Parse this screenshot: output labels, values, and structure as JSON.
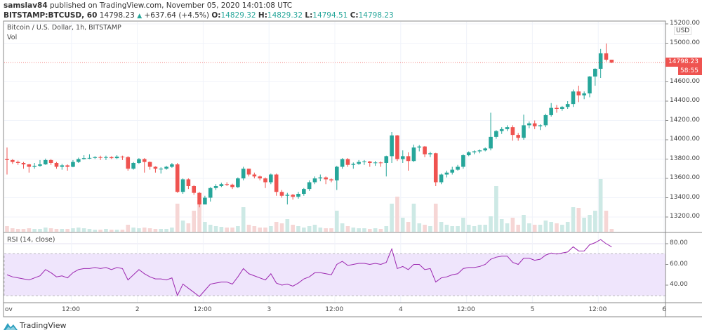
{
  "header": {
    "publisher": "samslav84",
    "published_text": "published on TradingView.com, November 05, 2020 14:01:08 UTC",
    "symbol": "BITSTAMP:BTCUSD, 60",
    "last": "14798.23",
    "change": "+637.64 (+4.5%)",
    "o_label": "O:",
    "o": "14829.32",
    "h_label": "H:",
    "h": "14829.32",
    "l_label": "L:",
    "l": "14794.51",
    "c_label": "C:",
    "c": "14798.23"
  },
  "legend": {
    "title": "Bitcoin / U.S. Dollar, 1h, BITSTAMP",
    "vol": "Vol",
    "rsi": "RSI (14, close)"
  },
  "price_axis": {
    "currency": "USD",
    "ticks": [
      "15200.00",
      "15000.00",
      "14600.00",
      "14400.00",
      "14200.00",
      "14000.00",
      "13800.00",
      "13600.00",
      "13400.00",
      "13200.00"
    ],
    "last_price": "14798.23",
    "countdown": "58:55"
  },
  "rsi_axis": {
    "ticks": [
      "80.00",
      "60.00",
      "40.00"
    ],
    "band": [
      30,
      70
    ]
  },
  "time_axis": {
    "ticks": [
      "ov",
      "12:00",
      "2",
      "12:00",
      "3",
      "12:00",
      "4",
      "12:00",
      "5",
      "12:00",
      "6"
    ]
  },
  "logo": "TradingView",
  "colors": {
    "up": "#26a69a",
    "down": "#ef5350",
    "rsi": "#9c27b0",
    "rsi_band": "#e9dcfb"
  },
  "chart_data": {
    "type": "candlestick",
    "interval": "1h",
    "ylim": [
      13100,
      15200
    ],
    "open0": 13800,
    "close": [
      13790,
      13770,
      13760,
      13745,
      13720,
      13730,
      13745,
      13790,
      13760,
      13720,
      13735,
      13720,
      13770,
      13800,
      13810,
      13812,
      13820,
      13815,
      13820,
      13810,
      13825,
      13820,
      13700,
      13760,
      13800,
      13770,
      13720,
      13700,
      13700,
      13720,
      13745,
      13460,
      13590,
      13520,
      13450,
      13330,
      13400,
      13500,
      13520,
      13540,
      13535,
      13510,
      13600,
      13700,
      13640,
      13620,
      13600,
      13560,
      13640,
      13460,
      13420,
      13430,
      13410,
      13440,
      13490,
      13560,
      13600,
      13610,
      13590,
      13580,
      13720,
      13800,
      13740,
      13750,
      13770,
      13775,
      13760,
      13765,
      13760,
      13830,
      14045,
      13800,
      13830,
      13780,
      13920,
      13930,
      13850,
      13860,
      13560,
      13640,
      13660,
      13690,
      13720,
      13840,
      13870,
      13880,
      13890,
      13910,
      14030,
      14090,
      14110,
      14130,
      14050,
      14020,
      14150,
      14170,
      14140,
      14150,
      14255,
      14330,
      14320,
      14340,
      14370,
      14500,
      14460,
      14480,
      14655,
      14735,
      14895,
      14829.32,
      14798.23
    ],
    "high": [
      13920,
      13800,
      13785,
      13770,
      13750,
      13760,
      13790,
      13805,
      13800,
      13770,
      13750,
      13745,
      13790,
      13815,
      13840,
      13850,
      13830,
      13835,
      13835,
      13830,
      13840,
      13835,
      13830,
      13770,
      13810,
      13810,
      13775,
      13725,
      13715,
      13730,
      13760,
      13760,
      13600,
      13600,
      13530,
      13460,
      13420,
      13510,
      13540,
      13555,
      13560,
      13545,
      13610,
      13720,
      13700,
      13660,
      13630,
      13610,
      13650,
      13650,
      13480,
      13450,
      13440,
      13460,
      13500,
      13580,
      13620,
      13640,
      13620,
      13600,
      13730,
      13810,
      13810,
      13765,
      13790,
      13790,
      13780,
      13780,
      13775,
      13835,
      14080,
      14050,
      13890,
      13870,
      13950,
      13945,
      13935,
      13875,
      13865,
      13650,
      13680,
      13720,
      13740,
      13850,
      13880,
      13890,
      13900,
      13920,
      14280,
      14100,
      14130,
      14150,
      14150,
      14070,
      14260,
      14190,
      14200,
      14160,
      14270,
      14380,
      14360,
      14350,
      14400,
      14520,
      14560,
      14500,
      14660,
      14740,
      14940,
      14997,
      14829.32
    ],
    "low": [
      13640,
      13750,
      13740,
      13700,
      13660,
      13700,
      13720,
      13740,
      13740,
      13700,
      13690,
      13680,
      13715,
      13760,
      13795,
      13800,
      13800,
      13790,
      13790,
      13800,
      13800,
      13790,
      13680,
      13690,
      13750,
      13660,
      13690,
      13660,
      13650,
      13690,
      13710,
      13450,
      13440,
      13490,
      13430,
      13300,
      13330,
      13360,
      13480,
      13510,
      13520,
      13490,
      13500,
      13580,
      13620,
      13600,
      13580,
      13500,
      13540,
      13420,
      13400,
      13330,
      13380,
      13390,
      13420,
      13470,
      13540,
      13570,
      13540,
      13560,
      13480,
      13700,
      13720,
      13700,
      13740,
      13740,
      13720,
      13730,
      13720,
      13620,
      13760,
      13780,
      13760,
      13680,
      13770,
      13880,
      13820,
      13820,
      13520,
      13540,
      13610,
      13640,
      13680,
      13700,
      13830,
      13850,
      13860,
      13880,
      13890,
      14010,
      14060,
      14090,
      13990,
      13990,
      14000,
      14120,
      14110,
      14100,
      14130,
      14240,
      14280,
      14300,
      14320,
      14340,
      14390,
      14420,
      14440,
      14560,
      14640,
      14810,
      14794.51
    ],
    "volume_relative": [
      8,
      5,
      4,
      4,
      5,
      4,
      4,
      6,
      5,
      4,
      4,
      4,
      5,
      6,
      5,
      4,
      3,
      3,
      4,
      3,
      3,
      3,
      10,
      6,
      5,
      6,
      5,
      4,
      4,
      4,
      6,
      40,
      16,
      12,
      30,
      45,
      14,
      10,
      8,
      7,
      6,
      6,
      8,
      35,
      10,
      8,
      6,
      6,
      8,
      14,
      12,
      18,
      10,
      8,
      6,
      8,
      10,
      6,
      5,
      5,
      30,
      12,
      8,
      6,
      5,
      5,
      4,
      5,
      4,
      8,
      40,
      50,
      20,
      14,
      40,
      12,
      10,
      8,
      40,
      14,
      10,
      8,
      8,
      20,
      10,
      8,
      10,
      10,
      22,
      65,
      18,
      12,
      20,
      10,
      24,
      12,
      10,
      10,
      16,
      14,
      12,
      10,
      14,
      35,
      34,
      20,
      24,
      30,
      75,
      30,
      4
    ],
    "rsi": [
      50,
      48,
      47,
      46,
      45,
      47,
      49,
      55,
      52,
      48,
      49,
      47,
      52,
      55,
      56,
      56,
      57,
      56,
      57,
      55,
      57,
      56,
      45,
      50,
      55,
      51,
      48,
      46,
      46,
      45,
      47,
      30,
      41,
      37,
      33,
      29,
      35,
      41,
      42,
      43,
      43,
      41,
      48,
      56,
      51,
      49,
      47,
      45,
      51,
      42,
      40,
      41,
      39,
      42,
      46,
      48,
      52,
      52,
      51,
      50,
      60,
      63,
      59,
      60,
      61,
      61,
      60,
      61,
      60,
      62,
      75,
      56,
      58,
      55,
      60,
      60,
      55,
      56,
      43,
      47,
      48,
      50,
      51,
      56,
      57,
      57,
      58,
      60,
      65,
      67,
      68,
      68,
      62,
      60,
      66,
      66,
      64,
      65,
      69,
      71,
      70,
      71,
      72,
      77,
      73,
      73,
      79,
      81,
      84,
      80,
      77
    ]
  }
}
